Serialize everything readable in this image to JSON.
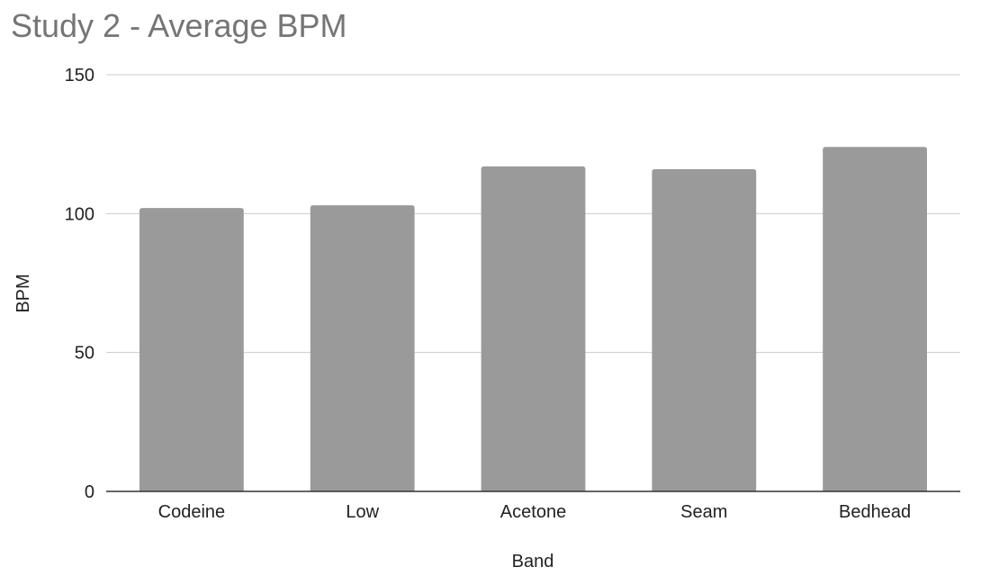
{
  "chart_data": {
    "type": "bar",
    "title": "Study 2 - Average BPM",
    "xlabel": "Band",
    "ylabel": "BPM",
    "categories": [
      "Codeine",
      "Low",
      "Acetone",
      "Seam",
      "Bedhead"
    ],
    "values": [
      102,
      103,
      117,
      116,
      124
    ],
    "ylim": [
      0,
      150
    ],
    "yticks": [
      0,
      50,
      100,
      150
    ],
    "grid": true,
    "legend": "none",
    "colors": {
      "bar": "#9a9a9a",
      "title": "#757575"
    }
  }
}
